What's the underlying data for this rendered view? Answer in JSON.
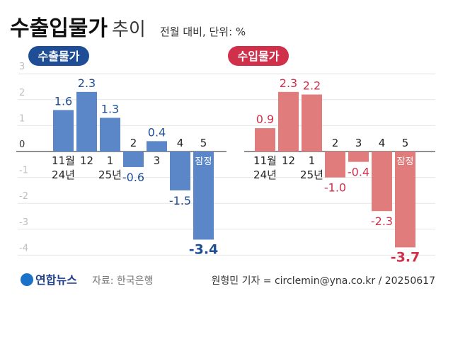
{
  "header": {
    "title": "수출입물가",
    "title_suffix": "추이",
    "subtitle": "전월 대비, 단위: %"
  },
  "footer": {
    "logo": "연합뉴스",
    "source": "자료: 한국은행",
    "credit": "원형민 기자 = circlemin@yna.co.kr / 20250617"
  },
  "colors": {
    "export": "#5b86c8",
    "export_label": "#1f4e96",
    "import": "#e07c7c",
    "import_label": "#d0304a",
    "grid": "#e6e6e6",
    "axis_tick": "#bfbfbf"
  },
  "chart_data": [
    {
      "type": "bar",
      "title": "수출물가",
      "categories": [
        "11월 24년",
        "12",
        "1 25년",
        "2",
        "3",
        "4",
        "5 잠정"
      ],
      "values": [
        1.6,
        2.3,
        1.3,
        -0.6,
        0.4,
        -1.5,
        -3.4
      ],
      "ylim": [
        -4,
        3
      ],
      "yticks": [
        3,
        2,
        1,
        0,
        -1,
        -2,
        -3,
        -4
      ],
      "grid": true
    },
    {
      "type": "bar",
      "title": "수입물가",
      "categories": [
        "11월 24년",
        "12",
        "1 25년",
        "2",
        "3",
        "4",
        "5 잠정"
      ],
      "values": [
        0.9,
        2.3,
        2.2,
        -1.0,
        -0.4,
        -2.3,
        -3.7
      ],
      "ylim": [
        -4,
        3
      ],
      "grid": true
    }
  ],
  "labels": {
    "cat_line1": [
      "11월",
      "12",
      "1",
      "2",
      "3",
      "4",
      "5"
    ],
    "cat_line2": [
      "24년",
      "",
      "25년",
      "",
      "",
      "",
      "잠정"
    ],
    "value_text_export": [
      "1.6",
      "2.3",
      "1.3",
      "-0.6",
      "0.4",
      "-1.5",
      "-3.4"
    ],
    "value_text_import": [
      "0.9",
      "2.3",
      "2.2",
      "-1.0",
      "-0.4",
      "-2.3",
      "-3.7"
    ]
  }
}
